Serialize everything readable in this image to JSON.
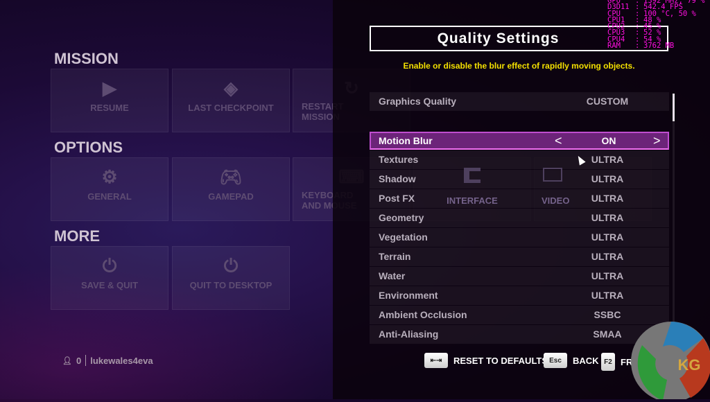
{
  "menu": {
    "sections": [
      {
        "title": "MISSION",
        "items": [
          {
            "label": "RESUME",
            "icon": "play-icon"
          },
          {
            "label": "LAST CHECKPOINT",
            "icon": "diamond-icon"
          },
          {
            "label": "RESTART MISSION",
            "icon": "restart-icon"
          }
        ]
      },
      {
        "title": "OPTIONS",
        "items": [
          {
            "label": "GENERAL",
            "icon": "gear-icon"
          },
          {
            "label": "GAMEPAD",
            "icon": "gamepad-icon"
          },
          {
            "label": "KEYBOARD AND MOUSE",
            "icon": "keyboard-icon"
          },
          {
            "label": "INTERFACE",
            "icon": "interface-icon"
          },
          {
            "label": "VIDEO",
            "icon": "monitor-icon"
          }
        ]
      },
      {
        "title": "MORE",
        "items": [
          {
            "label": "SAVE & QUIT",
            "icon": "save-power-icon"
          },
          {
            "label": "QUIT TO DESKTOP",
            "icon": "power-icon"
          }
        ]
      }
    ]
  },
  "user": {
    "count": "0",
    "name": "lukewales4eva"
  },
  "panel": {
    "title": "Quality Settings",
    "description": "Enable or disable the blur effect of rapidly moving objects.",
    "preset": {
      "label": "Graphics Quality",
      "value": "CUSTOM"
    },
    "selected": {
      "label": "Motion Blur",
      "value": "ON"
    },
    "settings": [
      {
        "label": "Textures",
        "value": "ULTRA"
      },
      {
        "label": "Shadow",
        "value": "ULTRA"
      },
      {
        "label": "Post FX",
        "value": "ULTRA"
      },
      {
        "label": "Geometry",
        "value": "ULTRA"
      },
      {
        "label": "Vegetation",
        "value": "ULTRA"
      },
      {
        "label": "Terrain",
        "value": "ULTRA"
      },
      {
        "label": "Water",
        "value": "ULTRA"
      },
      {
        "label": "Environment",
        "value": "ULTRA"
      },
      {
        "label": "Ambient Occlusion",
        "value": "SSBC"
      },
      {
        "label": "Anti-Aliasing",
        "value": "SMAA"
      }
    ],
    "scroll_position": 0
  },
  "hints": [
    {
      "key": "⇤⇥",
      "label": "RESET TO DEFAULTS"
    },
    {
      "key": "Esc",
      "label": "BACK"
    },
    {
      "key": "F2",
      "label": "FRIENDS"
    }
  ],
  "osd": [
    {
      "k": "GPU",
      "v": "1392 MHz, 79 %"
    },
    {
      "k": "D3D11",
      "v": "542.4 FPS"
    },
    {
      "k": "CPU",
      "v": "100 °C, 50 %"
    },
    {
      "k": "CPU1",
      "v": "48 %"
    },
    {
      "k": "CPU2",
      "v": "45 %"
    },
    {
      "k": "CPU3",
      "v": "52 %"
    },
    {
      "k": "CPU4",
      "v": "54 %"
    },
    {
      "k": "RAM",
      "v": "3762 MB"
    }
  ],
  "logo_text": "KG",
  "colors": {
    "accent": "#6c2479",
    "highlight_border": "#f070f0",
    "description": "#f3e000",
    "osd": "#ff10e0"
  }
}
